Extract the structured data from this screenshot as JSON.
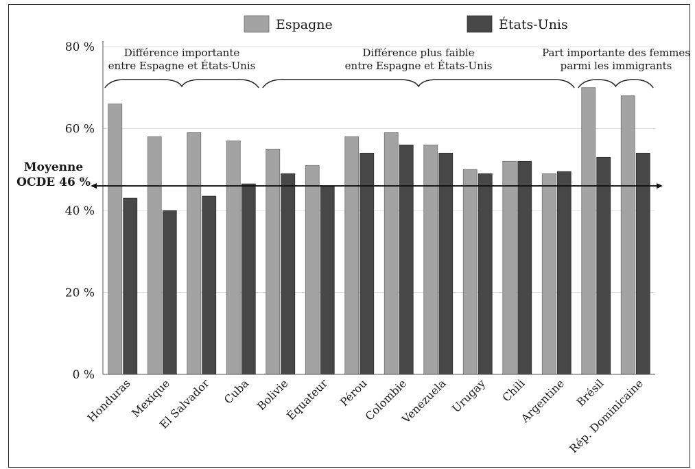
{
  "chart_data": {
    "type": "bar",
    "title": "",
    "xlabel": "",
    "ylabel": "",
    "ylim": [
      0,
      80
    ],
    "y_ticks": [
      "0 %",
      "20 %",
      "40 %",
      "60 %",
      "80 %"
    ],
    "y_tick_values": [
      0,
      20,
      40,
      60,
      80
    ],
    "grid": true,
    "legend_position": "top-center",
    "categories": [
      "Honduras",
      "Mexique",
      "El Salvador",
      "Cuba",
      "Bolivie",
      "Équateur",
      "Pérou",
      "Colombie",
      "Venezuela",
      "Urugay",
      "Chili",
      "Argentine",
      "Brésil",
      "Rép. Dominicaine"
    ],
    "series": [
      {
        "name": "Espagne",
        "color": "#a3a3a3",
        "values": [
          66,
          58,
          59,
          57,
          55,
          51,
          58,
          59,
          56,
          50,
          52,
          49,
          70,
          68
        ]
      },
      {
        "name": "États-Unis",
        "color": "#474747",
        "values": [
          43,
          40,
          43.5,
          46.5,
          49,
          46,
          54,
          56,
          54,
          49,
          52,
          49.5,
          53,
          54
        ]
      }
    ],
    "reference_line": {
      "label_line1": "Moyenne",
      "label_line2": "OCDE 46 %",
      "value": 46
    },
    "annotations": [
      {
        "line1": "Différence importante",
        "line2": "entre Espagne et États-Unis",
        "from": 0,
        "to": 3
      },
      {
        "line1": "Différence plus faible",
        "line2": "entre Espagne et États-Unis",
        "from": 4,
        "to": 11
      },
      {
        "line1": "Part importante des femmes",
        "line2": "parmi les immigrants",
        "from": 12,
        "to": 13
      }
    ]
  }
}
